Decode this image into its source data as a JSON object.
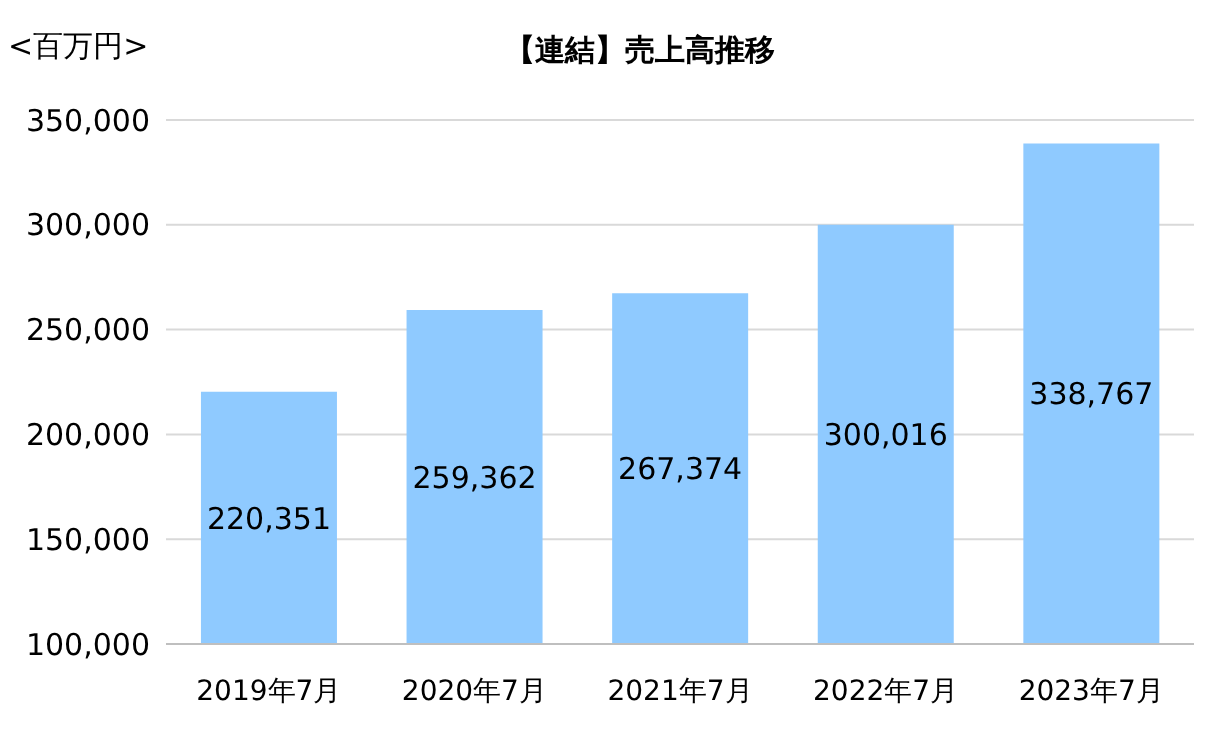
{
  "chart_data": {
    "type": "bar",
    "title": "【連結】売上高推移",
    "ylabel": "<百万円>",
    "categories": [
      "2019年7月",
      "2020年7月",
      "2021年7月",
      "2022年7月",
      "2023年7月"
    ],
    "values": [
      220351,
      259362,
      267374,
      300016,
      338767
    ],
    "color": "#8fcaff",
    "value_labels": [
      "220,351",
      "259,362",
      "267,374",
      "300,016",
      "338,767"
    ],
    "ylim": [
      100000,
      350000
    ],
    "yticks": [
      {
        "value": 100000,
        "label": "100,000"
      },
      {
        "value": 150000,
        "label": "150,000"
      },
      {
        "value": 200000,
        "label": "200,000"
      },
      {
        "value": 250000,
        "label": "250,000"
      },
      {
        "value": 300000,
        "label": "300,000"
      },
      {
        "value": 350000,
        "label": "350,000"
      }
    ],
    "grid": "y"
  }
}
